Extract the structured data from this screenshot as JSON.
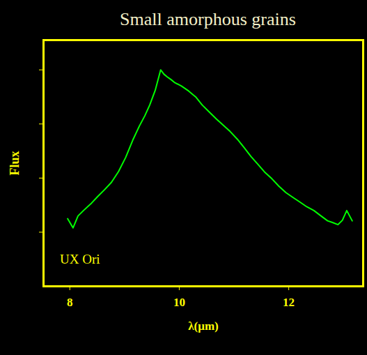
{
  "chart_data": {
    "type": "line",
    "title": "Small amorphous grains",
    "x_label": "λ(μm)",
    "y_label": "Flux",
    "series": [
      {
        "name": "UX Ori",
        "color": "#00ff00",
        "x": [
          7.96,
          8.06,
          8.15,
          8.25,
          8.38,
          8.51,
          8.63,
          8.76,
          8.89,
          9.02,
          9.15,
          9.27,
          9.37,
          9.46,
          9.56,
          9.66,
          9.72,
          9.78,
          9.85,
          9.91,
          10.04,
          10.17,
          10.3,
          10.42,
          10.55,
          10.68,
          10.8,
          10.93,
          11.06,
          11.18,
          11.31,
          11.44,
          11.57,
          11.69,
          11.82,
          11.95,
          12.08,
          12.2,
          12.33,
          12.46,
          12.59,
          12.71,
          12.8,
          12.9,
          12.98,
          13.06,
          13.16
        ],
        "values": [
          1.25,
          1.08,
          1.3,
          1.4,
          1.52,
          1.66,
          1.78,
          1.92,
          2.12,
          2.38,
          2.7,
          2.96,
          3.15,
          3.35,
          3.62,
          4.0,
          3.92,
          3.87,
          3.82,
          3.77,
          3.7,
          3.61,
          3.5,
          3.35,
          3.22,
          3.09,
          2.98,
          2.86,
          2.72,
          2.57,
          2.4,
          2.25,
          2.1,
          1.99,
          1.85,
          1.73,
          1.64,
          1.56,
          1.47,
          1.4,
          1.3,
          1.21,
          1.18,
          1.14,
          1.22,
          1.4,
          1.21
        ]
      }
    ],
    "annotations": [
      {
        "text": "UX Ori",
        "x": 7.82,
        "y": 0.5
      }
    ],
    "xlim": [
      7.52,
      13.36
    ],
    "xticks": [
      8,
      10,
      12
    ],
    "ylim": [
      0,
      4.55
    ],
    "yticks": [
      1,
      2,
      3,
      4
    ],
    "tick_labels": "x",
    "grid": false
  }
}
